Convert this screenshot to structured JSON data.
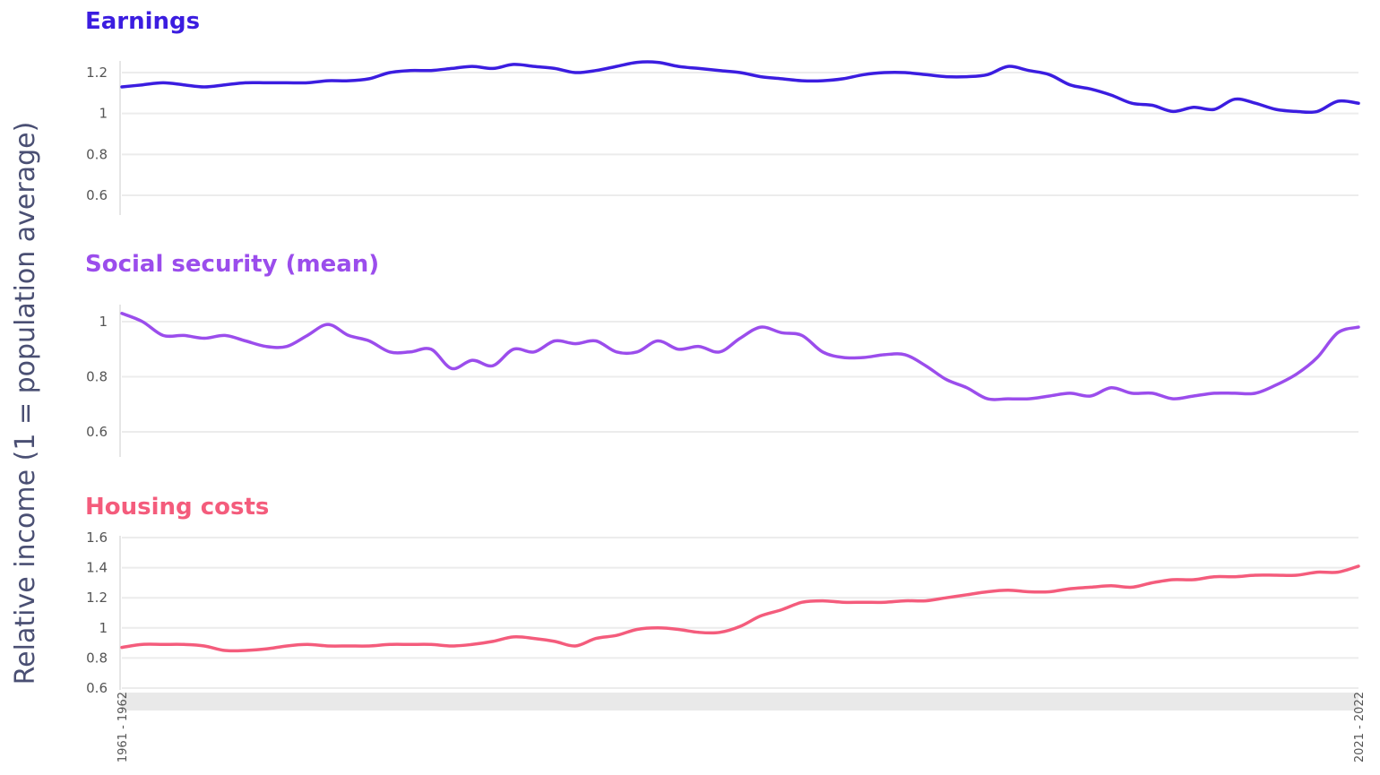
{
  "y_axis_label": "Relative income (1 = population average)",
  "colors": {
    "earnings": "#3b1de0",
    "social": "#9b4dec",
    "housing": "#f45c7c"
  },
  "chart_data": [
    {
      "type": "line",
      "title": "Earnings",
      "color": "#3b1de0",
      "ylim": [
        0.55,
        1.3
      ],
      "yticks": [
        1.2,
        1,
        0.8,
        0.6
      ],
      "ytick_labels": [
        "1.2",
        "1",
        "0.8",
        "0.6"
      ],
      "x_start": "1961 - 1962",
      "x_end": "2021 - 2022",
      "values": [
        1.13,
        1.14,
        1.15,
        1.14,
        1.13,
        1.14,
        1.15,
        1.15,
        1.15,
        1.15,
        1.16,
        1.16,
        1.17,
        1.2,
        1.21,
        1.21,
        1.22,
        1.23,
        1.22,
        1.24,
        1.23,
        1.22,
        1.2,
        1.21,
        1.23,
        1.25,
        1.25,
        1.23,
        1.22,
        1.21,
        1.2,
        1.18,
        1.17,
        1.16,
        1.16,
        1.17,
        1.19,
        1.2,
        1.2,
        1.19,
        1.18,
        1.18,
        1.19,
        1.23,
        1.21,
        1.19,
        1.14,
        1.12,
        1.09,
        1.05,
        1.04,
        1.01,
        1.03,
        1.02,
        1.07,
        1.05,
        1.02,
        1.01,
        1.01,
        1.06,
        1.05
      ]
    },
    {
      "type": "line",
      "title": "Social security (mean)",
      "color": "#9b4dec",
      "ylim": [
        0.5,
        1.05
      ],
      "yticks": [
        1,
        0.8,
        0.6
      ],
      "ytick_labels": [
        "1",
        "0.8",
        "0.6"
      ],
      "x_start": "1961 - 1962",
      "x_end": "2021 - 2022",
      "values": [
        1.03,
        1.0,
        0.95,
        0.95,
        0.94,
        0.95,
        0.93,
        0.91,
        0.91,
        0.95,
        0.99,
        0.95,
        0.93,
        0.89,
        0.89,
        0.9,
        0.83,
        0.86,
        0.84,
        0.9,
        0.89,
        0.93,
        0.92,
        0.93,
        0.89,
        0.89,
        0.93,
        0.9,
        0.91,
        0.89,
        0.94,
        0.98,
        0.96,
        0.95,
        0.89,
        0.87,
        0.87,
        0.88,
        0.88,
        0.84,
        0.79,
        0.76,
        0.72,
        0.72,
        0.72,
        0.73,
        0.74,
        0.73,
        0.76,
        0.74,
        0.74,
        0.72,
        0.73,
        0.74,
        0.74,
        0.74,
        0.77,
        0.81,
        0.87,
        0.96,
        0.98
      ]
    },
    {
      "type": "line",
      "title": "Housing costs",
      "color": "#f45c7c",
      "ylim": [
        0.6,
        1.6
      ],
      "yticks": [
        1.6,
        1.4,
        1.2,
        1,
        0.8,
        0.6
      ],
      "ytick_labels": [
        "1.6",
        "1.4",
        "1.2",
        "1",
        "0.8",
        "0.6"
      ],
      "x_start": "1961 - 1962",
      "x_end": "2021 - 2022",
      "values": [
        0.87,
        0.89,
        0.89,
        0.89,
        0.88,
        0.85,
        0.85,
        0.86,
        0.88,
        0.89,
        0.88,
        0.88,
        0.88,
        0.89,
        0.89,
        0.89,
        0.88,
        0.89,
        0.91,
        0.94,
        0.93,
        0.91,
        0.88,
        0.93,
        0.95,
        0.99,
        1.0,
        0.99,
        0.97,
        0.97,
        1.01,
        1.08,
        1.12,
        1.17,
        1.18,
        1.17,
        1.17,
        1.17,
        1.18,
        1.18,
        1.2,
        1.22,
        1.24,
        1.25,
        1.24,
        1.24,
        1.26,
        1.27,
        1.28,
        1.27,
        1.3,
        1.32,
        1.32,
        1.34,
        1.34,
        1.35,
        1.35,
        1.35,
        1.37,
        1.37,
        1.41
      ]
    }
  ]
}
